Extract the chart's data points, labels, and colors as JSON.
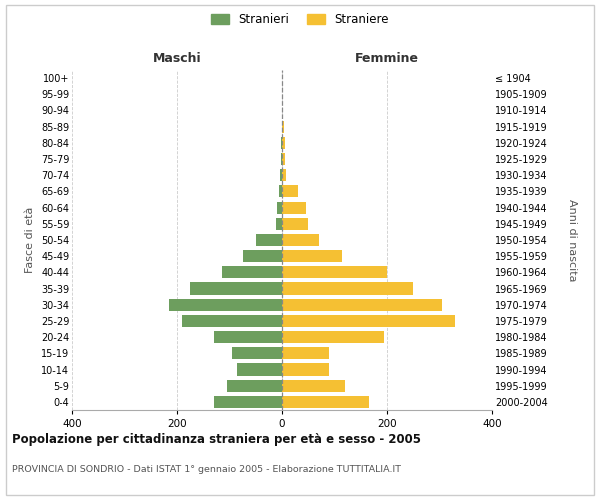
{
  "age_groups": [
    "0-4",
    "5-9",
    "10-14",
    "15-19",
    "20-24",
    "25-29",
    "30-34",
    "35-39",
    "40-44",
    "45-49",
    "50-54",
    "55-59",
    "60-64",
    "65-69",
    "70-74",
    "75-79",
    "80-84",
    "85-89",
    "90-94",
    "95-99",
    "100+"
  ],
  "birth_years": [
    "2000-2004",
    "1995-1999",
    "1990-1994",
    "1985-1989",
    "1980-1984",
    "1975-1979",
    "1970-1974",
    "1965-1969",
    "1960-1964",
    "1955-1959",
    "1950-1954",
    "1945-1949",
    "1940-1944",
    "1935-1939",
    "1930-1934",
    "1925-1929",
    "1920-1924",
    "1915-1919",
    "1910-1914",
    "1905-1909",
    "≤ 1904"
  ],
  "maschi": [
    130,
    105,
    85,
    95,
    130,
    190,
    215,
    175,
    115,
    75,
    50,
    12,
    10,
    5,
    3,
    2,
    2,
    0,
    0,
    0,
    0
  ],
  "femmine": [
    165,
    120,
    90,
    90,
    195,
    330,
    305,
    250,
    200,
    115,
    70,
    50,
    45,
    30,
    8,
    5,
    5,
    3,
    0,
    0,
    0
  ],
  "color_maschi": "#6d9e5e",
  "color_femmine": "#f5c033",
  "title_main": "Popolazione per cittadinanza straniera per età e sesso - 2005",
  "title_sub": "PROVINCIA DI SONDRIO - Dati ISTAT 1° gennaio 2005 - Elaborazione TUTTITALIA.IT",
  "ylabel_left": "Fasce di età",
  "ylabel_right": "Anni di nascita",
  "xlim": 400,
  "label_maschi": "Stranieri",
  "label_femmine": "Straniere",
  "header_maschi": "Maschi",
  "header_femmine": "Femmine",
  "background_color": "#ffffff",
  "grid_color": "#cccccc",
  "bar_height": 0.75
}
